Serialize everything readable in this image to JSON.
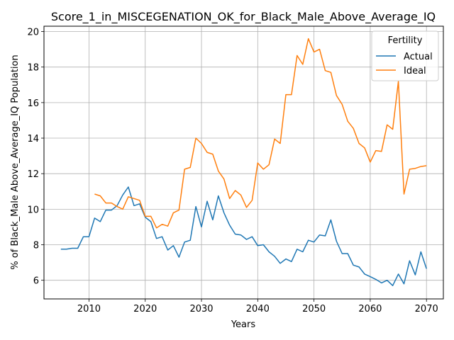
{
  "chart_data": {
    "type": "line",
    "title": "Score_1_in_MISCEGENATION_OK_for_Black_Male_Above_Average_IQ",
    "xlabel": "Years",
    "ylabel": "% of Black_Male Above_Average_IQ Population",
    "xlim": [
      2002,
      2073
    ],
    "ylim": [
      4.95,
      20.3
    ],
    "xticks": [
      2010,
      2020,
      2030,
      2040,
      2050,
      2060,
      2070
    ],
    "yticks": [
      6,
      8,
      10,
      12,
      14,
      16,
      18,
      20
    ],
    "grid": true,
    "legend": {
      "title": "Fertility",
      "position": "top-right"
    },
    "colors": {
      "Actual": "#1f77b4",
      "Ideal": "#ff7f0e"
    },
    "series": [
      {
        "name": "Actual",
        "x": [
          2005,
          2006,
          2007,
          2008,
          2009,
          2010,
          2011,
          2012,
          2013,
          2014,
          2015,
          2016,
          2017,
          2018,
          2019,
          2020,
          2021,
          2022,
          2023,
          2024,
          2025,
          2026,
          2027,
          2028,
          2029,
          2030,
          2031,
          2032,
          2033,
          2034,
          2035,
          2036,
          2037,
          2038,
          2039,
          2040,
          2041,
          2042,
          2043,
          2044,
          2045,
          2046,
          2047,
          2048,
          2049,
          2050,
          2051,
          2052,
          2053,
          2054,
          2055,
          2056,
          2057,
          2058,
          2059,
          2060,
          2061,
          2062,
          2063,
          2064,
          2065,
          2066,
          2067,
          2068,
          2069,
          2070
        ],
        "values": [
          7.75,
          7.75,
          7.8,
          7.8,
          8.45,
          8.45,
          9.5,
          9.3,
          9.95,
          9.95,
          10.2,
          10.8,
          11.25,
          10.2,
          10.3,
          9.55,
          9.3,
          8.35,
          8.45,
          7.7,
          7.95,
          7.3,
          8.15,
          8.25,
          10.15,
          9.0,
          10.45,
          9.4,
          10.75,
          9.8,
          9.1,
          8.6,
          8.55,
          8.3,
          8.45,
          7.95,
          8.0,
          7.6,
          7.35,
          6.95,
          7.2,
          7.05,
          7.75,
          7.6,
          8.25,
          8.15,
          8.55,
          8.5,
          9.4,
          8.2,
          7.5,
          7.5,
          6.85,
          6.75,
          6.35,
          6.2,
          6.05,
          5.85,
          6.0,
          5.7,
          6.35,
          5.8,
          7.1,
          6.3,
          7.6,
          6.65
        ]
      },
      {
        "name": "Ideal",
        "x": [
          2011,
          2012,
          2013,
          2014,
          2015,
          2016,
          2017,
          2018,
          2019,
          2020,
          2021,
          2022,
          2023,
          2024,
          2025,
          2026,
          2027,
          2028,
          2029,
          2030,
          2031,
          2032,
          2033,
          2034,
          2035,
          2036,
          2037,
          2038,
          2039,
          2040,
          2041,
          2042,
          2043,
          2044,
          2045,
          2046,
          2047,
          2048,
          2049,
          2050,
          2051,
          2052,
          2053,
          2054,
          2055,
          2056,
          2057,
          2058,
          2059,
          2060,
          2061,
          2062,
          2063,
          2064,
          2065,
          2066,
          2067,
          2068,
          2069,
          2070
        ],
        "values": [
          10.85,
          10.75,
          10.35,
          10.35,
          10.15,
          10.0,
          10.7,
          10.6,
          10.5,
          9.6,
          9.6,
          8.95,
          9.15,
          9.05,
          9.8,
          9.95,
          12.25,
          12.35,
          14.0,
          13.7,
          13.2,
          13.1,
          12.15,
          11.7,
          10.6,
          11.05,
          10.8,
          10.1,
          10.5,
          12.6,
          12.25,
          12.5,
          13.95,
          13.7,
          16.45,
          16.45,
          18.65,
          18.15,
          19.6,
          18.85,
          19.0,
          17.8,
          17.7,
          16.4,
          15.9,
          14.95,
          14.55,
          13.7,
          13.45,
          12.65,
          13.3,
          13.25,
          14.75,
          14.5,
          17.2,
          10.85,
          12.25,
          12.3,
          12.4,
          12.45
        ]
      }
    ]
  }
}
